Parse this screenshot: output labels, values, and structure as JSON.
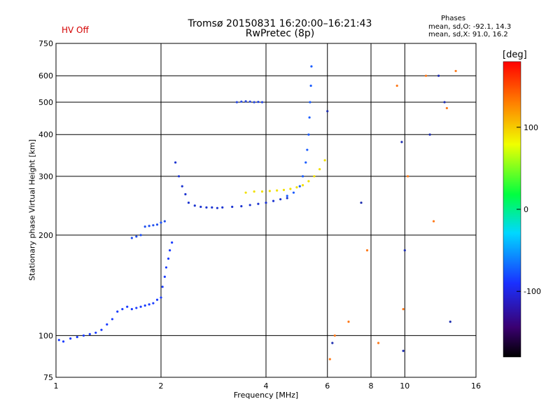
{
  "header": {
    "title_line1": "Tromsø 20150831 16:20:00–16:21:43",
    "title_line2": "RwPretec (8p)",
    "hv_status": "HV Off"
  },
  "phases_box": {
    "title": "Phases",
    "o_mode": "mean, sd,O: -92.1, 14.3",
    "x_mode": "mean, sd,X:  91.0, 16.2"
  },
  "colorbar": {
    "unit": "[deg]",
    "ticks": [
      "100",
      "0",
      "-100"
    ],
    "tick_values": [
      100,
      0,
      -100
    ],
    "range": [
      -180,
      180
    ]
  },
  "chart_data": {
    "type": "scatter",
    "xlabel": "Frequency [MHz]",
    "ylabel": "Stationary phase Virtual Height [km]",
    "xscale": "log",
    "yscale": "log",
    "xlim": [
      1,
      16
    ],
    "ylim": [
      75,
      750
    ],
    "x_ticks": [
      1,
      2,
      4,
      6,
      8,
      10,
      16
    ],
    "x_tick_labels": [
      "1",
      "2",
      "4",
      "6",
      "8",
      "10",
      "16"
    ],
    "y_ticks": [
      75,
      100,
      200,
      300,
      400,
      500,
      600,
      750
    ],
    "y_tick_labels": [
      "75",
      "100",
      "200",
      "300",
      "400",
      "500",
      "600",
      "750"
    ],
    "grid": true,
    "traces": [
      {
        "mode": "O",
        "phase_deg": -95,
        "color": "#1a3cff",
        "x": [
          1.02,
          1.05,
          1.1,
          1.15,
          1.2,
          1.25,
          1.3,
          1.35,
          1.4,
          1.45,
          1.5,
          1.55,
          1.6,
          1.65,
          1.7,
          1.75,
          1.8,
          1.85,
          1.9,
          1.95,
          2.0,
          2.02,
          2.05,
          2.07,
          2.1,
          2.12,
          2.15
        ],
        "y": [
          97,
          96,
          98,
          99,
          100,
          101,
          102,
          104,
          108,
          112,
          118,
          120,
          122,
          120,
          121,
          122,
          123,
          124,
          125,
          128,
          130,
          140,
          150,
          160,
          170,
          180,
          190
        ]
      },
      {
        "mode": "O",
        "phase_deg": -100,
        "color": "#2050f0",
        "x": [
          1.65,
          1.7,
          1.75,
          1.8,
          1.85,
          1.9,
          1.95,
          2.0,
          2.05
        ],
        "y": [
          196,
          198,
          200,
          212,
          213,
          214,
          215,
          218,
          220
        ]
      },
      {
        "mode": "O",
        "phase_deg": -110,
        "color": "#1c34d0",
        "x": [
          2.2,
          2.25,
          2.3,
          2.35,
          2.4,
          2.5,
          2.6,
          2.7,
          2.8,
          2.9,
          3.0,
          3.2,
          3.4,
          3.6,
          3.8,
          4.0,
          4.2,
          4.4,
          4.6
        ],
        "y": [
          330,
          300,
          280,
          265,
          250,
          245,
          243,
          242,
          242,
          241,
          242,
          243,
          244,
          246,
          248,
          250,
          253,
          256,
          258
        ]
      },
      {
        "mode": "O",
        "phase_deg": -90,
        "color": "#1a5cff",
        "x": [
          4.6,
          4.8,
          5.0,
          5.1,
          5.2,
          5.25,
          5.3,
          5.33,
          5.35,
          5.38,
          5.4
        ],
        "y": [
          262,
          268,
          280,
          300,
          330,
          360,
          400,
          450,
          500,
          560,
          640
        ]
      },
      {
        "mode": "X",
        "phase_deg": 100,
        "color": "#f2e000",
        "x": [
          3.5,
          3.7,
          3.9,
          4.1,
          4.3,
          4.5,
          4.7,
          4.9,
          5.1,
          5.3,
          5.5,
          5.7,
          5.9
        ],
        "y": [
          268,
          270,
          270,
          271,
          272,
          273,
          275,
          278,
          282,
          290,
          300,
          315,
          335
        ]
      },
      {
        "mode": "O",
        "phase_deg": -100,
        "color": "#2a4ae0",
        "x": [
          3.3,
          3.4,
          3.5,
          3.6,
          3.7,
          3.8,
          3.9
        ],
        "y": [
          500,
          502,
          503,
          502,
          500,
          501,
          500
        ]
      },
      {
        "mode": "noise",
        "phase_deg": 150,
        "color": "#ff7a1a",
        "x": [
          6.1,
          6.3,
          6.9,
          7.8,
          8.4,
          9.5,
          9.9,
          10.2,
          11.5,
          12.1,
          13.2,
          14.0
        ],
        "y": [
          85,
          100,
          110,
          180,
          95,
          560,
          120,
          300,
          600,
          220,
          480,
          620
        ]
      },
      {
        "mode": "noise",
        "phase_deg": -120,
        "color": "#2030b0",
        "x": [
          6.0,
          6.2,
          7.5,
          9.8,
          9.9,
          10.0,
          11.8,
          12.5,
          13.0,
          13.5
        ],
        "y": [
          470,
          95,
          250,
          380,
          90,
          180,
          400,
          600,
          500,
          110
        ]
      }
    ]
  }
}
